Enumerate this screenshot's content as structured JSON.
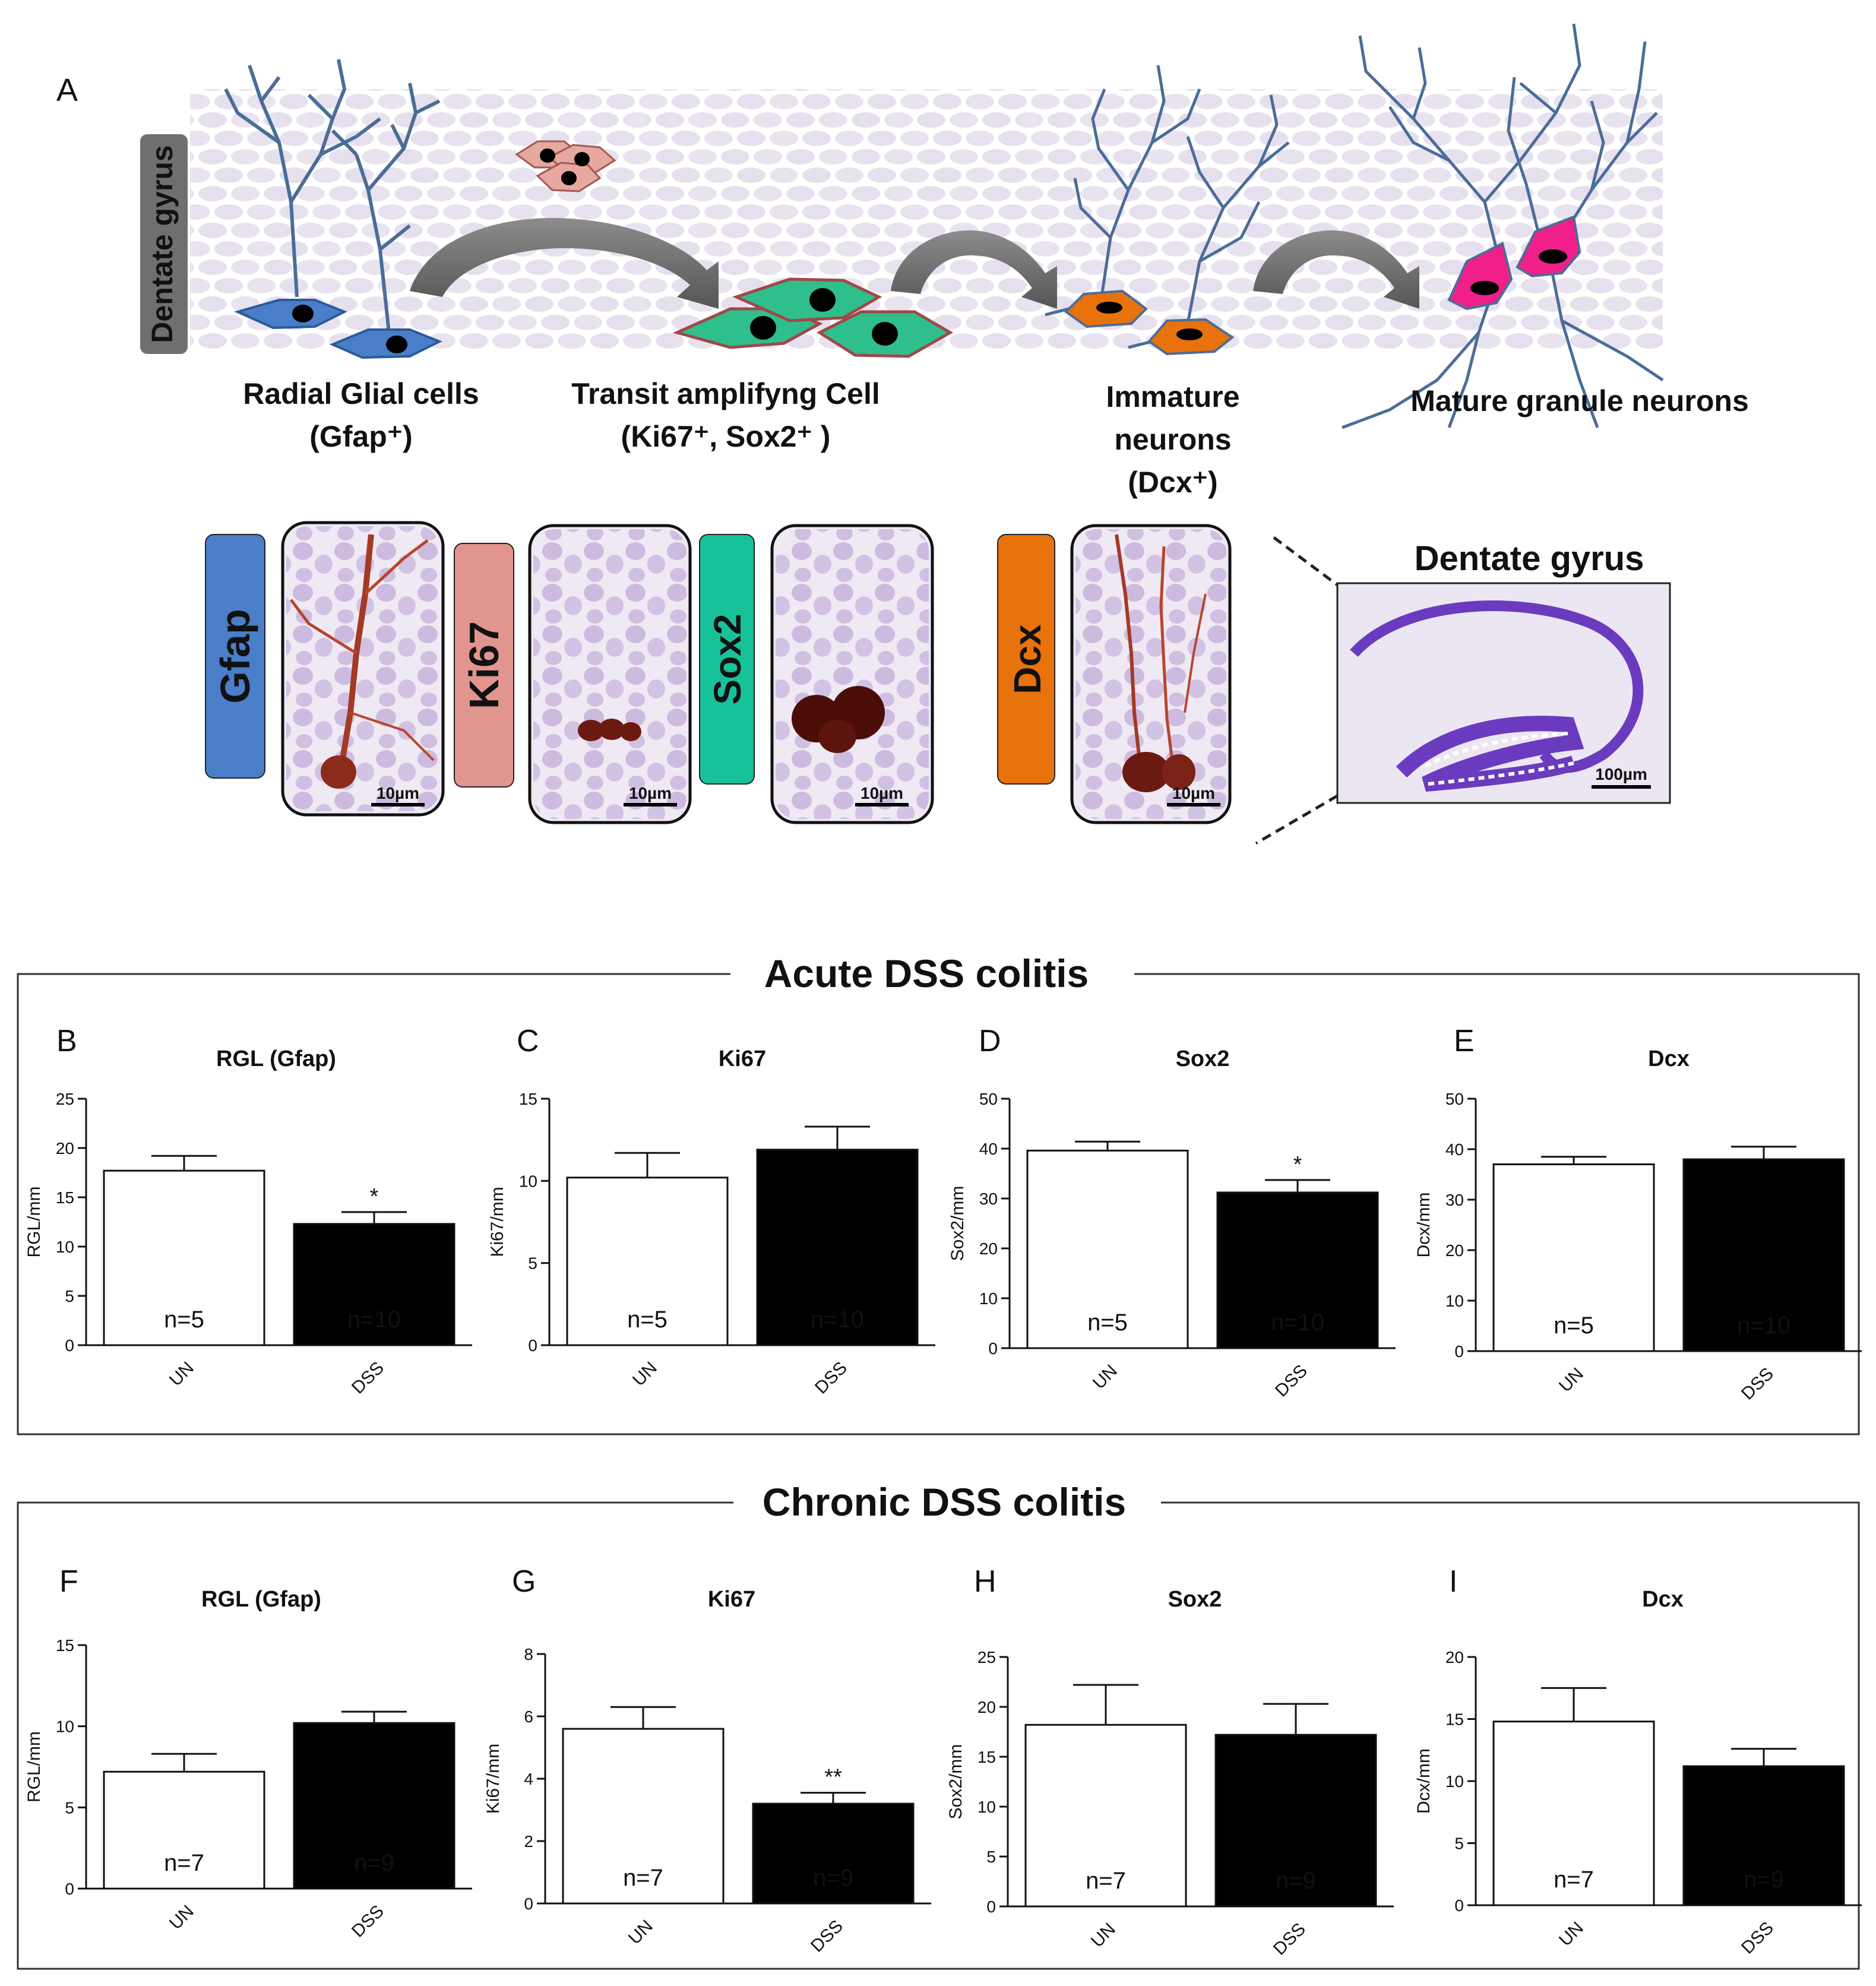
{
  "panel_a": {
    "letter": "A",
    "side_label": "Dentate gyrus",
    "stage_labels": {
      "rgl_line1": "Radial Glial cells",
      "rgl_line2": "(Gfap⁺)",
      "tac_line1": "Transit amplifyng Cell",
      "tac_line2": "(Ki67⁺, Sox2⁺ )",
      "imm_line1": "Immature",
      "imm_line2": "neurons",
      "imm_line3": "(Dcx⁺)",
      "mature": "Mature granule neurons"
    },
    "markers": [
      {
        "label": "Gfap",
        "color": "#4a7ec9"
      },
      {
        "label": "Ki67",
        "color": "#e2958f"
      },
      {
        "label": "Sox2",
        "color": "#17c29a"
      },
      {
        "label": "Dcx",
        "color": "#e8720c"
      }
    ],
    "scale_bars": [
      "10µm",
      "10µm",
      "10µm",
      "10µm"
    ],
    "dg_title": "Dentate gyrus",
    "dg_scale": "100µm"
  },
  "sections": [
    {
      "title": "Acute DSS colitis"
    },
    {
      "title": "Chronic DSS colitis"
    }
  ],
  "chart_data": [
    {
      "panel": "B",
      "type": "bar",
      "title": "RGL (Gfap)",
      "ylabel": "RGL/mm",
      "ylim": [
        0,
        25
      ],
      "yticks": [
        0,
        5,
        10,
        15,
        20,
        25
      ],
      "categories": [
        "UN",
        "DSS"
      ],
      "values": [
        17.7,
        12.3
      ],
      "errors": [
        1.5,
        1.2
      ],
      "n_labels": [
        "n=5",
        "n=10"
      ],
      "significance": [
        "",
        "*"
      ]
    },
    {
      "panel": "C",
      "type": "bar",
      "title": "Ki67",
      "ylabel": "Ki67/mm",
      "ylim": [
        0,
        15
      ],
      "yticks": [
        0,
        5,
        10,
        15
      ],
      "categories": [
        "UN",
        "DSS"
      ],
      "values": [
        10.2,
        11.9
      ],
      "errors": [
        1.5,
        1.4
      ],
      "n_labels": [
        "n=5",
        "n=10"
      ],
      "significance": [
        "",
        ""
      ]
    },
    {
      "panel": "D",
      "type": "bar",
      "title": "Sox2",
      "ylabel": "Sox2/mm",
      "ylim": [
        0,
        50
      ],
      "yticks": [
        0,
        10,
        20,
        30,
        40,
        50
      ],
      "categories": [
        "UN",
        "DSS"
      ],
      "values": [
        39.6,
        31.2
      ],
      "errors": [
        1.8,
        2.5
      ],
      "n_labels": [
        "n=5",
        "n=10"
      ],
      "significance": [
        "",
        "*"
      ]
    },
    {
      "panel": "E",
      "type": "bar",
      "title": "Dcx",
      "ylabel": "Dcx/mm",
      "ylim": [
        0,
        50
      ],
      "yticks": [
        0,
        10,
        20,
        30,
        40,
        50
      ],
      "categories": [
        "UN",
        "DSS"
      ],
      "values": [
        37.0,
        38.0
      ],
      "errors": [
        1.5,
        2.5
      ],
      "n_labels": [
        "n=5",
        "n=10"
      ],
      "significance": [
        "",
        ""
      ]
    },
    {
      "panel": "F",
      "type": "bar",
      "title": "RGL (Gfap)",
      "ylabel": "RGL/mm",
      "ylim": [
        0,
        15
      ],
      "yticks": [
        0,
        5,
        10,
        15
      ],
      "categories": [
        "UN",
        "DSS"
      ],
      "values": [
        7.2,
        10.2
      ],
      "errors": [
        1.1,
        0.7
      ],
      "n_labels": [
        "n=7",
        "n=9"
      ],
      "significance": [
        "",
        ""
      ]
    },
    {
      "panel": "G",
      "type": "bar",
      "title": "Ki67",
      "ylabel": "Ki67/mm",
      "ylim": [
        0,
        8
      ],
      "yticks": [
        0,
        2,
        4,
        6,
        8
      ],
      "categories": [
        "UN",
        "DSS"
      ],
      "values": [
        5.6,
        3.2
      ],
      "errors": [
        0.7,
        0.35
      ],
      "n_labels": [
        "n=7",
        "n=9"
      ],
      "significance": [
        "",
        "**"
      ]
    },
    {
      "panel": "H",
      "type": "bar",
      "title": "Sox2",
      "ylabel": "Sox2/mm",
      "ylim": [
        0,
        25
      ],
      "yticks": [
        0,
        5,
        10,
        15,
        20,
        25
      ],
      "categories": [
        "UN",
        "DSS"
      ],
      "values": [
        18.2,
        17.2
      ],
      "errors": [
        4.0,
        3.1
      ],
      "n_labels": [
        "n=7",
        "n=9"
      ],
      "significance": [
        "",
        ""
      ]
    },
    {
      "panel": "I",
      "type": "bar",
      "title": "Dcx",
      "ylabel": "Dcx/mm",
      "ylim": [
        0,
        20
      ],
      "yticks": [
        0,
        5,
        10,
        15,
        20
      ],
      "categories": [
        "UN",
        "DSS"
      ],
      "values": [
        14.8,
        11.2
      ],
      "errors": [
        2.7,
        1.4
      ],
      "n_labels": [
        "n=7",
        "n=9"
      ],
      "significance": [
        "",
        ""
      ]
    }
  ]
}
